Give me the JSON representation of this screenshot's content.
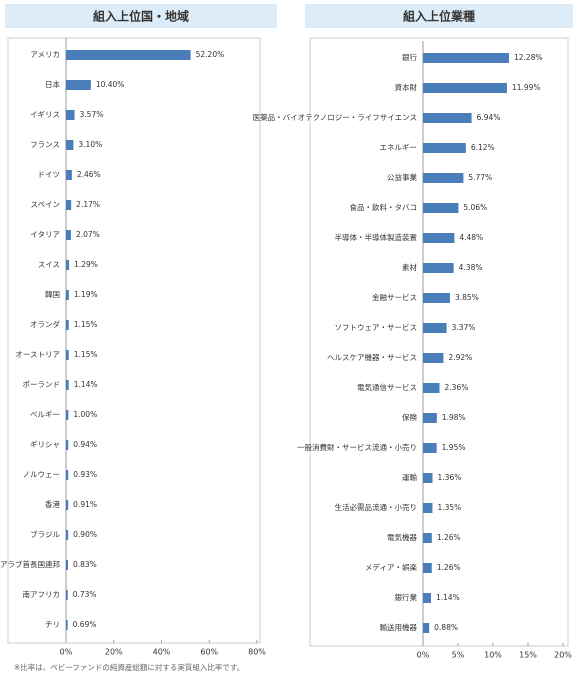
{
  "chart_data": [
    {
      "type": "bar",
      "orientation": "horizontal",
      "title": "組入上位国・地域",
      "categories": [
        "アメリカ",
        "日本",
        "イギリス",
        "フランス",
        "ドイツ",
        "スペイン",
        "イタリア",
        "スイス",
        "韓国",
        "オランダ",
        "オーストリア",
        "ポーランド",
        "ベルギー",
        "ギリシャ",
        "ノルウェー",
        "香港",
        "ブラジル",
        "アラブ首長国連邦",
        "南アフリカ",
        "チリ"
      ],
      "values": [
        52.2,
        10.4,
        3.57,
        3.1,
        2.46,
        2.17,
        2.07,
        1.29,
        1.19,
        1.15,
        1.15,
        1.14,
        1.0,
        0.94,
        0.93,
        0.91,
        0.9,
        0.83,
        0.73,
        0.69
      ],
      "value_labels": [
        "52.20%",
        "10.40%",
        "3.57%",
        "3.10%",
        "2.46%",
        "2.17%",
        "2.07%",
        "1.29%",
        "1.19%",
        "1.15%",
        "1.15%",
        "1.14%",
        "1.00%",
        "0.94%",
        "0.93%",
        "0.91%",
        "0.90%",
        "0.83%",
        "0.73%",
        "0.69%"
      ],
      "color": "#4a7ebb",
      "xlim": [
        0,
        80
      ],
      "xticks": [
        {
          "value": 0,
          "label": "0%"
        },
        {
          "value": 20,
          "label": "20%"
        },
        {
          "value": 40,
          "label": "40%"
        },
        {
          "value": 60,
          "label": "60%"
        },
        {
          "value": 80,
          "label": "80%"
        }
      ]
    },
    {
      "type": "bar",
      "orientation": "horizontal",
      "title": "組入上位業種",
      "categories": [
        "銀行",
        "資本財",
        "医薬品・バイオテクノロジー・ライフサイエンス",
        "エネルギー",
        "公益事業",
        "食品・飲料・タバコ",
        "半導体・半導体製造装置",
        "素材",
        "金融サービス",
        "ソフトウェア・サービス",
        "ヘルスケア機器・サービス",
        "電気通信サービス",
        "保険",
        "一般消費財・サービス流通・小売り",
        "運輸",
        "生活必需品流通・小売り",
        "電気機器",
        "メディア・娯楽",
        "銀行業",
        "輸送用機器"
      ],
      "values": [
        12.28,
        11.99,
        6.94,
        6.12,
        5.77,
        5.06,
        4.48,
        4.38,
        3.85,
        3.37,
        2.92,
        2.36,
        1.98,
        1.95,
        1.36,
        1.35,
        1.26,
        1.26,
        1.14,
        0.88
      ],
      "value_labels": [
        "12.28%",
        "11.99%",
        "6.94%",
        "6.12%",
        "5.77%",
        "5.06%",
        "4.48%",
        "4.38%",
        "3.85%",
        "3.37%",
        "2.92%",
        "2.36%",
        "1.98%",
        "1.95%",
        "1.36%",
        "1.35%",
        "1.26%",
        "1.26%",
        "1.14%",
        "0.88%"
      ],
      "color": "#4a7ebb",
      "xlim": [
        0,
        20
      ],
      "xticks": [
        {
          "value": 0,
          "label": "0%"
        },
        {
          "value": 5,
          "label": "5%"
        },
        {
          "value": 10,
          "label": "10%"
        },
        {
          "value": 15,
          "label": "15%"
        },
        {
          "value": 20,
          "label": "20%"
        }
      ]
    }
  ],
  "footnote": "※比率は、ベビーファンドの純資産総額に対する実質組入比率です。"
}
